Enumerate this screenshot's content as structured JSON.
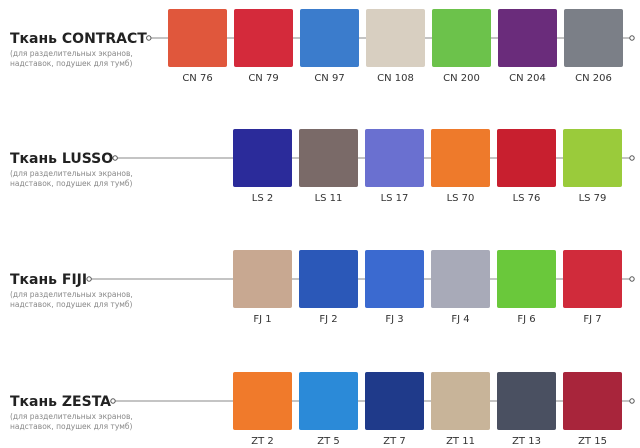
{
  "rows": [
    {
      "title": "Ткань CONTRACT",
      "subtitle": [
        "(для разделительных экранов,",
        "надставок, подушек для тумб)"
      ],
      "swatches": [
        {
          "code": "CN 76",
          "color": "#e0573c"
        },
        {
          "code": "CN 79",
          "color": "#d42a3b"
        },
        {
          "code": "CN 97",
          "color": "#3b7ccc"
        },
        {
          "code": "CN 108",
          "color": "#d8cfc1"
        },
        {
          "code": "CN 200",
          "color": "#6cc24b"
        },
        {
          "code": "CN 204",
          "color": "#6a2c7b"
        },
        {
          "code": "CN 206",
          "color": "#7b7f87"
        }
      ]
    },
    {
      "title": "Ткань LUSSO",
      "subtitle": [
        "(для разделительных экранов,",
        "надставок, подушек для тумб)"
      ],
      "swatches": [
        {
          "code": "LS 2",
          "color": "#2b2b9a"
        },
        {
          "code": "LS 11",
          "color": "#7a6a68"
        },
        {
          "code": "LS 17",
          "color": "#6a70d0"
        },
        {
          "code": "LS 70",
          "color": "#ee7a2b"
        },
        {
          "code": "LS 76",
          "color": "#c81f2f"
        },
        {
          "code": "LS 79",
          "color": "#9acb3b"
        }
      ]
    },
    {
      "title": "Ткань FIJI",
      "subtitle": [
        "(для разделительных экранов,",
        "надставок, подушек для тумб)"
      ],
      "swatches": [
        {
          "code": "FJ 1",
          "color": "#c8a891"
        },
        {
          "code": "FJ 2",
          "color": "#2b58b8"
        },
        {
          "code": "FJ 3",
          "color": "#3b6ad0"
        },
        {
          "code": "FJ 4",
          "color": "#a8aab8"
        },
        {
          "code": "FJ 6",
          "color": "#6ac83b"
        },
        {
          "code": "FJ 7",
          "color": "#d02b3b"
        }
      ]
    },
    {
      "title": "Ткань ZESTA",
      "subtitle": [
        "(для разделительных экранов,",
        "надставок, подушек для тумб)"
      ],
      "swatches": [
        {
          "code": "ZT 2",
          "color": "#f07a2b"
        },
        {
          "code": "ZT 5",
          "color": "#2b8ad8"
        },
        {
          "code": "ZT 7",
          "color": "#1f3a8a"
        },
        {
          "code": "ZT 11",
          "color": "#c8b499"
        },
        {
          "code": "ZT 13",
          "color": "#4a5061"
        },
        {
          "code": "ZT 15",
          "color": "#a8253b"
        }
      ]
    }
  ]
}
